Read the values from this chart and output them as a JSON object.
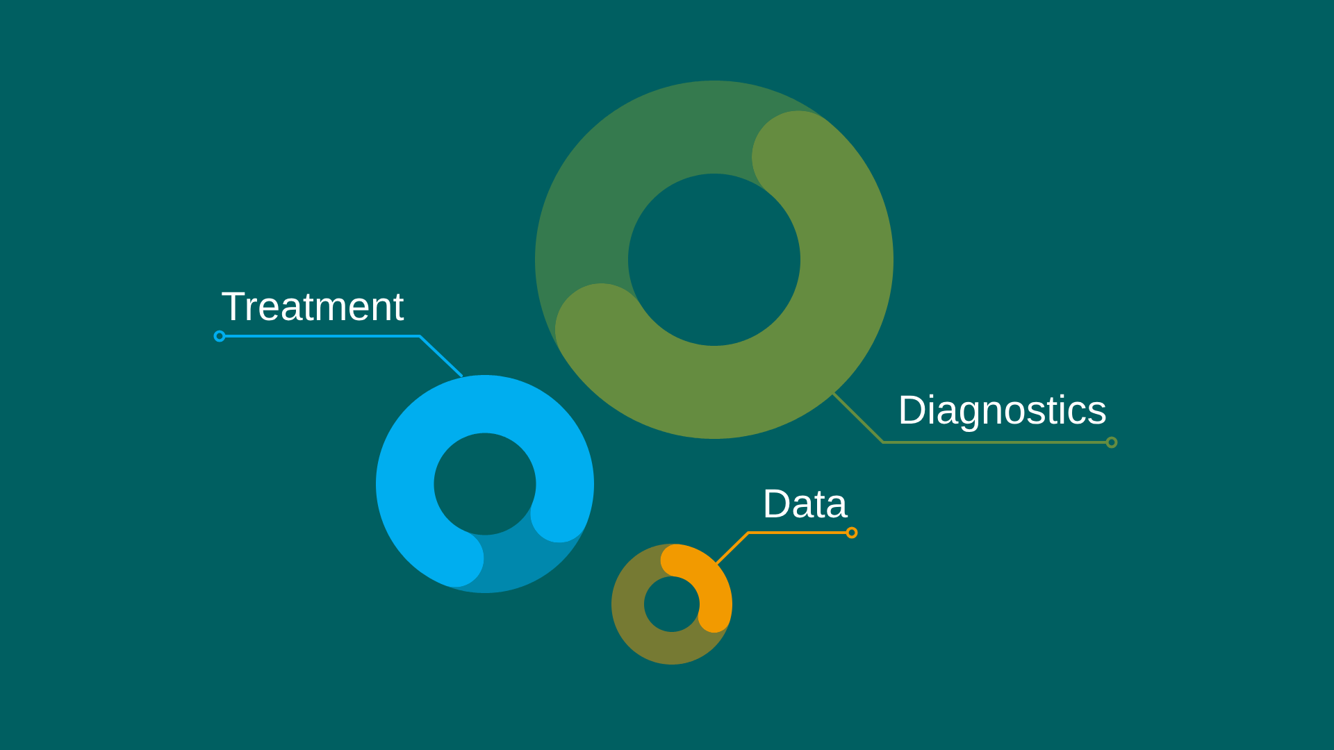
{
  "chart_data": [
    {
      "type": "donut",
      "title": "Diagnostics",
      "categories": [
        null,
        null
      ],
      "values": [
        64,
        36
      ],
      "colors": [
        "#658c40",
        "#357a4e"
      ]
    },
    {
      "type": "donut",
      "title": "Treatment",
      "categories": [
        null,
        null
      ],
      "values": [
        84,
        16
      ],
      "colors": [
        "#00aeef",
        "#0088ad"
      ]
    },
    {
      "type": "donut",
      "title": "Data",
      "categories": [
        null,
        null
      ],
      "values": [
        37,
        63
      ],
      "colors": [
        "#f29a00",
        "#767a33"
      ]
    }
  ]
}
